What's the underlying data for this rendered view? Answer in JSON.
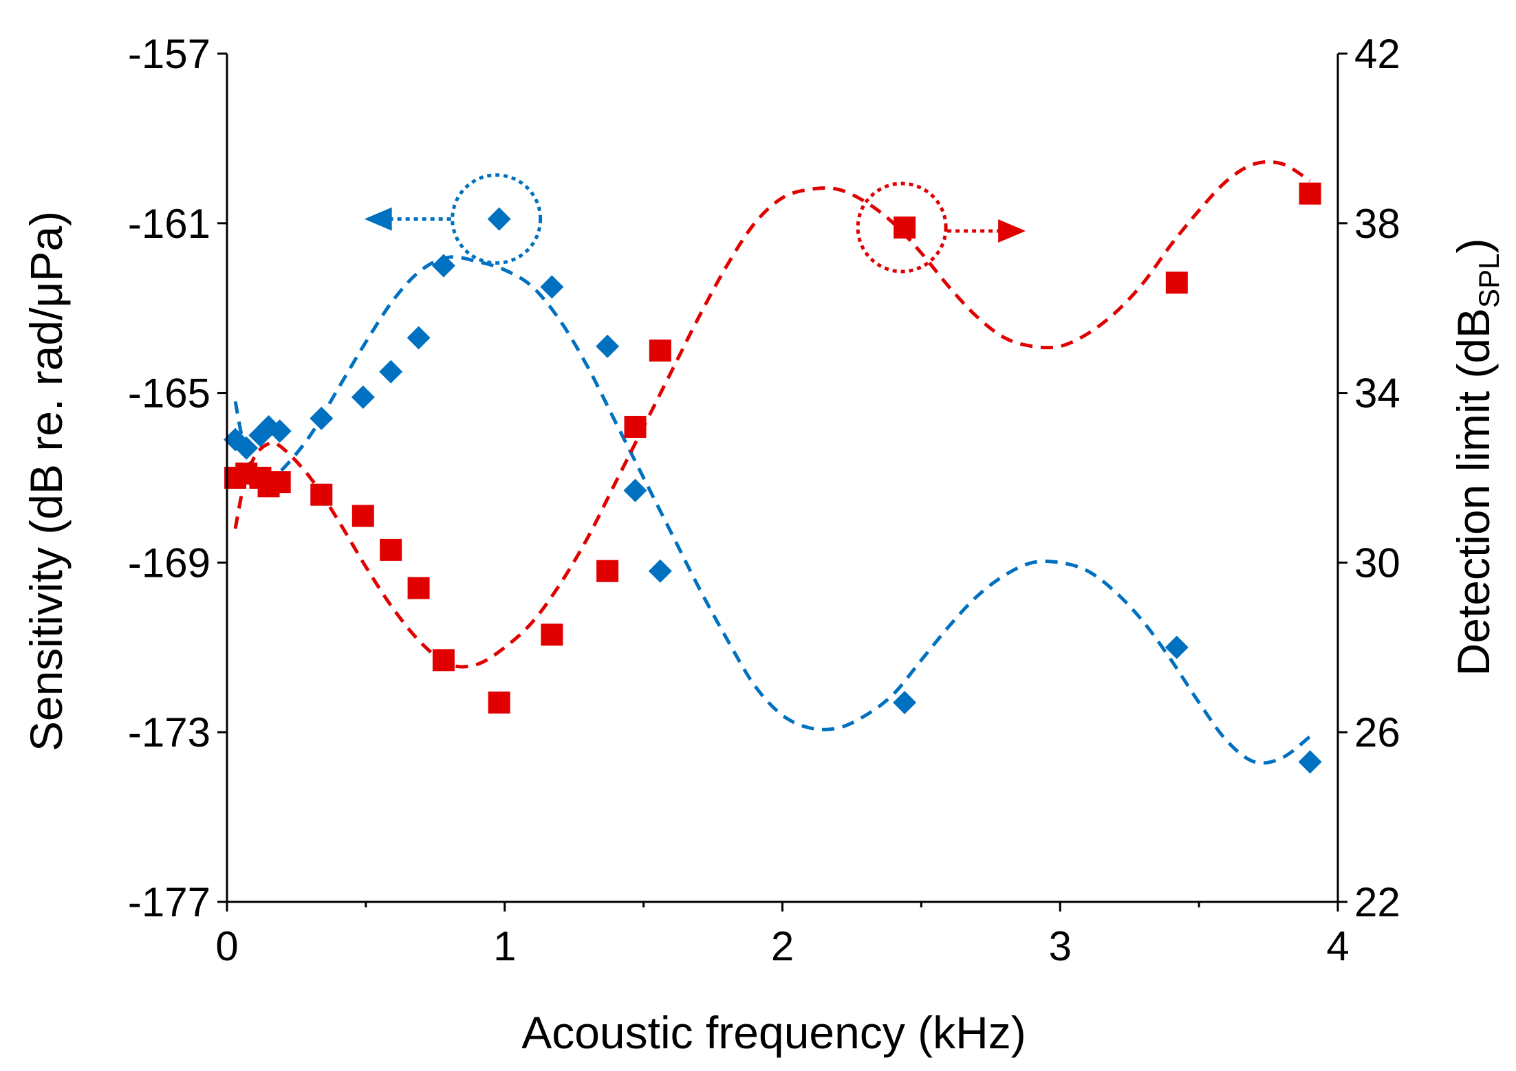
{
  "chart_data": {
    "type": "scatter",
    "title": "",
    "xlabel": "Acoustic frequency (kHz)",
    "ylabel_left": "Sensitivity (dB re. rad/μPa)",
    "ylabel_right_main": "Detection limit (dB",
    "ylabel_right_sub": "SPL",
    "ylabel_right_close": ")",
    "xlim": [
      0,
      4
    ],
    "ylim_left": [
      -177,
      -157
    ],
    "ylim_right": [
      22,
      42
    ],
    "xticks": [
      0,
      1,
      2,
      3,
      4
    ],
    "yticks_left": [
      -177,
      -173,
      -169,
      -165,
      -161,
      -157
    ],
    "yticks_right": [
      22,
      26,
      30,
      34,
      38,
      42
    ],
    "grid": false,
    "colors": {
      "sensitivity": "#0070C0",
      "detection": "#E00000"
    },
    "series": [
      {
        "name": "Sensitivity",
        "axis": "left",
        "marker": "diamond",
        "x": [
          0.03,
          0.07,
          0.12,
          0.15,
          0.19,
          0.34,
          0.49,
          0.59,
          0.69,
          0.78,
          0.98,
          1.17,
          1.37,
          1.47,
          1.56,
          2.44,
          3.42,
          3.9
        ],
        "y": [
          -166.1,
          -166.3,
          -166.0,
          -165.8,
          -165.9,
          -165.6,
          -165.1,
          -164.5,
          -163.7,
          -162.0,
          -160.9,
          -162.5,
          -163.9,
          -167.3,
          -169.2,
          -172.3,
          -171.0,
          -173.7
        ]
      },
      {
        "name": "Detection limit",
        "axis": "right",
        "marker": "square",
        "x": [
          0.03,
          0.07,
          0.12,
          0.15,
          0.19,
          0.34,
          0.49,
          0.59,
          0.69,
          0.78,
          0.98,
          1.17,
          1.37,
          1.47,
          1.56,
          2.44,
          3.42,
          3.9
        ],
        "y": [
          32.0,
          32.1,
          32.0,
          31.8,
          31.9,
          31.6,
          31.1,
          30.3,
          29.4,
          27.7,
          26.7,
          28.3,
          29.8,
          33.2,
          35.0,
          37.9,
          36.6,
          38.7
        ]
      },
      {
        "name": "Sensitivity fit",
        "axis": "left",
        "style": "dashed",
        "x": [
          0.03,
          0.06,
          0.1,
          0.15,
          0.2,
          0.3,
          0.4,
          0.5,
          0.6,
          0.7,
          0.8,
          0.9,
          1.0,
          1.1,
          1.2,
          1.3,
          1.4,
          1.5,
          1.6,
          1.7,
          1.8,
          1.9,
          2.0,
          2.1,
          2.2,
          2.3,
          2.4,
          2.5,
          2.6,
          2.7,
          2.8,
          2.9,
          3.0,
          3.1,
          3.2,
          3.3,
          3.4,
          3.5,
          3.6,
          3.7,
          3.8,
          3.9
        ],
        "y": [
          -165.2,
          -166.2,
          -166.8,
          -167.0,
          -166.8,
          -166.0,
          -164.9,
          -163.8,
          -162.8,
          -162.1,
          -161.8,
          -161.9,
          -162.1,
          -162.5,
          -163.3,
          -164.4,
          -165.7,
          -167.0,
          -168.3,
          -169.6,
          -170.8,
          -171.9,
          -172.6,
          -172.9,
          -172.9,
          -172.6,
          -172.1,
          -171.3,
          -170.5,
          -169.8,
          -169.3,
          -169.0,
          -169.0,
          -169.2,
          -169.7,
          -170.4,
          -171.3,
          -172.3,
          -173.2,
          -173.7,
          -173.6,
          -173.1
        ]
      },
      {
        "name": "Detection fit",
        "axis": "right",
        "style": "dashed",
        "x": [
          0.03,
          0.06,
          0.1,
          0.15,
          0.2,
          0.3,
          0.4,
          0.5,
          0.6,
          0.7,
          0.8,
          0.9,
          1.0,
          1.1,
          1.2,
          1.3,
          1.4,
          1.5,
          1.6,
          1.7,
          1.8,
          1.9,
          2.0,
          2.1,
          2.2,
          2.3,
          2.4,
          2.5,
          2.6,
          2.7,
          2.8,
          2.9,
          3.0,
          3.1,
          3.2,
          3.3,
          3.4,
          3.5,
          3.6,
          3.7,
          3.8,
          3.9
        ],
        "y": [
          30.8,
          31.8,
          32.5,
          32.8,
          32.7,
          32.0,
          31.0,
          29.9,
          28.9,
          28.1,
          27.6,
          27.6,
          28.0,
          28.6,
          29.5,
          30.6,
          31.9,
          33.2,
          34.5,
          35.8,
          37.0,
          38.0,
          38.6,
          38.8,
          38.8,
          38.5,
          38.0,
          37.3,
          36.5,
          35.8,
          35.3,
          35.1,
          35.1,
          35.4,
          35.9,
          36.6,
          37.5,
          38.3,
          39.0,
          39.4,
          39.4,
          39.0
        ]
      }
    ]
  }
}
